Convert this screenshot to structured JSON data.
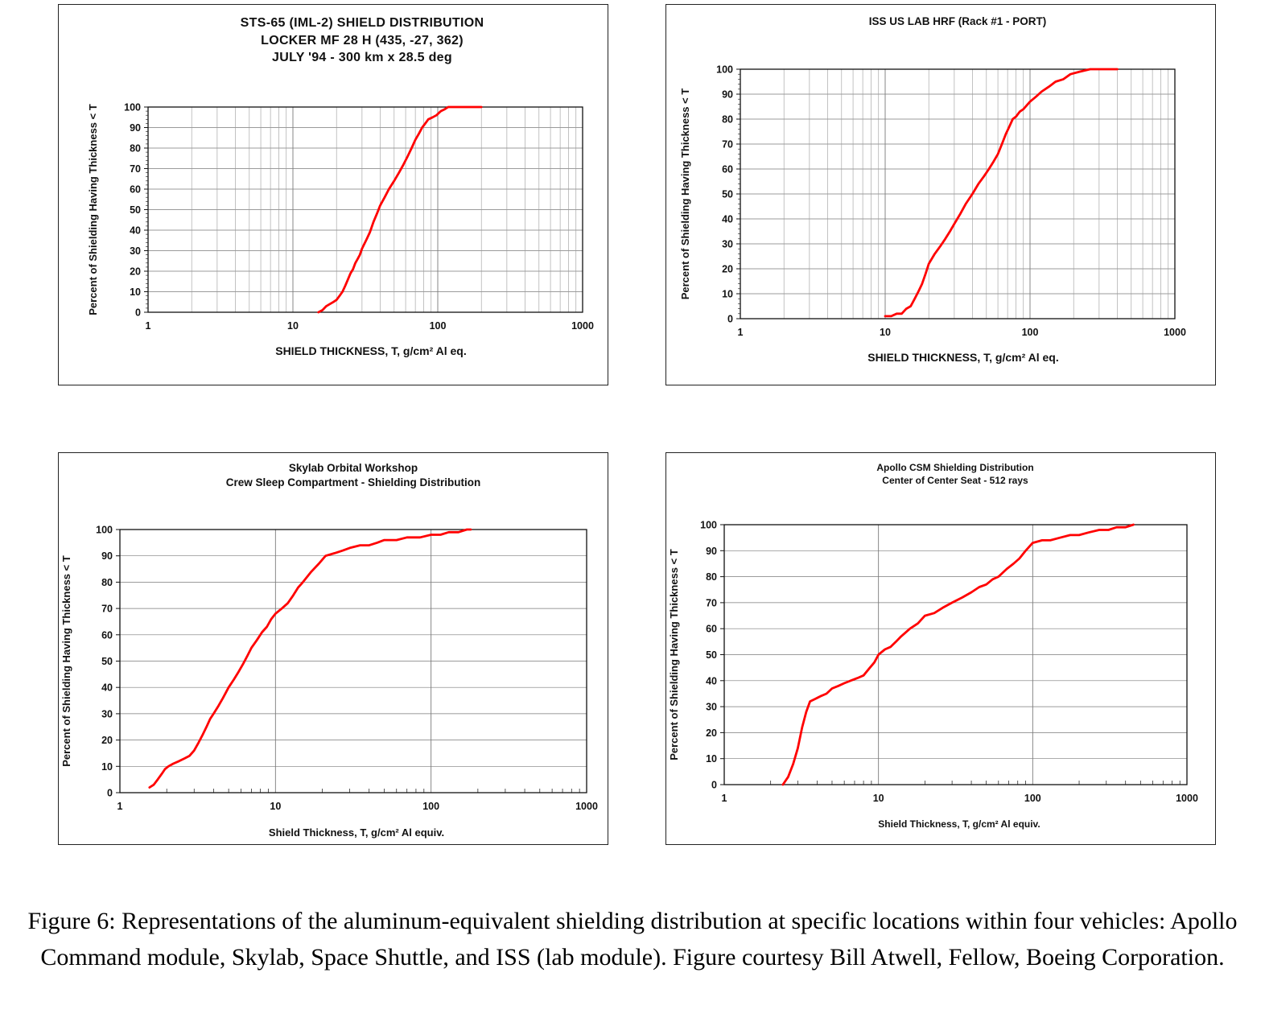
{
  "caption": "Figure 6:  Representations of the aluminum-equivalent shielding distribution at specific locations within four vehicles:  Apollo Command module, Skylab, Space Shuttle, and ISS (lab module). Figure courtesy Bill Atwell, Fellow, Boeing Corporation.",
  "chart_data": [
    {
      "type": "line",
      "title_lines": [
        "STS-65 (IML-2) SHIELD DISTRIBUTION",
        "LOCKER MF 28 H (435, -27, 362)",
        "JULY '94 - 300 km x 28.5 deg"
      ],
      "ylabel": "Percent of Shielding Having Thickness < T",
      "xlabel": "SHIELD THICKNESS, T,  g/cm² Al eq.",
      "x_scale": "log",
      "xlim": [
        1,
        1000
      ],
      "ylim": [
        0,
        100
      ],
      "x_ticks": [
        1,
        10,
        100,
        1000
      ],
      "y_ticks": [
        0,
        10,
        20,
        30,
        40,
        50,
        60,
        70,
        80,
        90,
        100
      ],
      "minor_grid": true,
      "minor_y_ticks": true,
      "line_color": "#ff0000",
      "points": [
        [
          15,
          0
        ],
        [
          16,
          1
        ],
        [
          17,
          3
        ],
        [
          18,
          4
        ],
        [
          19,
          5
        ],
        [
          20,
          6
        ],
        [
          21,
          8
        ],
        [
          22,
          10
        ],
        [
          23,
          13
        ],
        [
          24,
          16
        ],
        [
          25,
          19
        ],
        [
          26,
          21
        ],
        [
          27,
          24
        ],
        [
          28,
          26
        ],
        [
          29,
          28
        ],
        [
          30,
          31
        ],
        [
          32,
          35
        ],
        [
          34,
          39
        ],
        [
          36,
          44
        ],
        [
          38,
          48
        ],
        [
          40,
          52
        ],
        [
          43,
          56
        ],
        [
          46,
          60
        ],
        [
          50,
          64
        ],
        [
          54,
          68
        ],
        [
          58,
          72
        ],
        [
          62,
          76
        ],
        [
          66,
          80
        ],
        [
          70,
          84
        ],
        [
          74,
          87
        ],
        [
          78,
          90
        ],
        [
          82,
          92
        ],
        [
          86,
          94
        ],
        [
          92,
          95
        ],
        [
          98,
          96
        ],
        [
          105,
          98
        ],
        [
          112,
          99
        ],
        [
          118,
          100
        ],
        [
          200,
          100
        ]
      ]
    },
    {
      "type": "line",
      "title_lines": [
        "ISS US LAB HRF (Rack #1 - PORT)"
      ],
      "ylabel": "Percent of Shielding Having Thickness < T",
      "xlabel": "SHIELD THICKNESS, T,  g/cm² Al eq.",
      "x_scale": "log",
      "xlim": [
        1,
        1000
      ],
      "ylim": [
        0,
        100
      ],
      "x_ticks": [
        1,
        10,
        100,
        1000
      ],
      "y_ticks": [
        0,
        10,
        20,
        30,
        40,
        50,
        60,
        70,
        80,
        90,
        100
      ],
      "minor_grid": true,
      "minor_y_ticks": true,
      "line_color": "#ff0000",
      "points": [
        [
          10,
          1
        ],
        [
          11,
          1
        ],
        [
          12,
          2
        ],
        [
          13,
          2
        ],
        [
          14,
          4
        ],
        [
          15,
          5
        ],
        [
          16,
          8
        ],
        [
          17,
          11
        ],
        [
          18,
          14
        ],
        [
          19,
          18
        ],
        [
          20,
          22
        ],
        [
          22,
          26
        ],
        [
          24,
          29
        ],
        [
          26,
          32
        ],
        [
          28,
          35
        ],
        [
          30,
          38
        ],
        [
          33,
          42
        ],
        [
          36,
          46
        ],
        [
          40,
          50
        ],
        [
          44,
          54
        ],
        [
          48,
          57
        ],
        [
          52,
          60
        ],
        [
          56,
          63
        ],
        [
          60,
          66
        ],
        [
          64,
          70
        ],
        [
          68,
          74
        ],
        [
          72,
          77
        ],
        [
          76,
          80
        ],
        [
          80,
          81
        ],
        [
          85,
          83
        ],
        [
          90,
          84
        ],
        [
          100,
          87
        ],
        [
          110,
          89
        ],
        [
          120,
          91
        ],
        [
          135,
          93
        ],
        [
          150,
          95
        ],
        [
          170,
          96
        ],
        [
          190,
          98
        ],
        [
          220,
          99
        ],
        [
          260,
          100
        ],
        [
          400,
          100
        ]
      ]
    },
    {
      "type": "line",
      "title_lines": [
        "Skylab Orbital Workshop",
        "Crew Sleep Compartment - Shielding Distribution"
      ],
      "ylabel": "Percent of Shielding Having Thickness < T",
      "xlabel": "Shield Thickness, T, g/cm² Al equiv.",
      "x_scale": "log",
      "xlim": [
        1,
        1000
      ],
      "ylim": [
        0,
        100
      ],
      "x_ticks": [
        1,
        10,
        100,
        1000
      ],
      "y_ticks": [
        0,
        10,
        20,
        30,
        40,
        50,
        60,
        70,
        80,
        90,
        100
      ],
      "minor_grid": false,
      "minor_y_ticks": false,
      "line_color": "#ff0000",
      "points": [
        [
          1.55,
          2
        ],
        [
          1.65,
          3
        ],
        [
          1.75,
          5
        ],
        [
          1.85,
          7
        ],
        [
          1.95,
          9
        ],
        [
          2.05,
          10
        ],
        [
          2.2,
          11
        ],
        [
          2.4,
          12
        ],
        [
          2.6,
          13
        ],
        [
          2.8,
          14
        ],
        [
          3.0,
          16
        ],
        [
          3.2,
          19
        ],
        [
          3.4,
          22
        ],
        [
          3.6,
          25
        ],
        [
          3.8,
          28
        ],
        [
          4.0,
          30
        ],
        [
          4.3,
          33
        ],
        [
          4.6,
          36
        ],
        [
          5.0,
          40
        ],
        [
          5.4,
          43
        ],
        [
          5.8,
          46
        ],
        [
          6.2,
          49
        ],
        [
          6.6,
          52
        ],
        [
          7.0,
          55
        ],
        [
          7.6,
          58
        ],
        [
          8.2,
          61
        ],
        [
          8.8,
          63
        ],
        [
          9.4,
          66
        ],
        [
          10,
          68
        ],
        [
          11,
          70
        ],
        [
          12,
          72
        ],
        [
          13,
          75
        ],
        [
          14,
          78
        ],
        [
          15,
          80
        ],
        [
          17,
          84
        ],
        [
          19,
          87
        ],
        [
          21,
          90
        ],
        [
          24,
          91
        ],
        [
          27,
          92
        ],
        [
          30,
          93
        ],
        [
          35,
          94
        ],
        [
          40,
          94
        ],
        [
          45,
          95
        ],
        [
          50,
          96
        ],
        [
          60,
          96
        ],
        [
          70,
          97
        ],
        [
          85,
          97
        ],
        [
          100,
          98
        ],
        [
          115,
          98
        ],
        [
          130,
          99
        ],
        [
          150,
          99
        ],
        [
          170,
          100
        ],
        [
          180,
          100
        ]
      ]
    },
    {
      "type": "line",
      "title_lines": [
        "Apollo CSM Shielding Distribution",
        "Center of Center Seat - 512 rays"
      ],
      "ylabel": "Percent of Shielding Having Thickness < T",
      "xlabel": "Shield Thickness, T, g/cm² Al equiv.",
      "x_scale": "log",
      "xlim": [
        1,
        1000
      ],
      "ylim": [
        0,
        100
      ],
      "x_ticks": [
        1,
        10,
        100,
        1000
      ],
      "y_ticks": [
        0,
        10,
        20,
        30,
        40,
        50,
        60,
        70,
        80,
        90,
        100
      ],
      "minor_grid": false,
      "minor_y_ticks": false,
      "line_color": "#ff0000",
      "points": [
        [
          2.4,
          0
        ],
        [
          2.6,
          3
        ],
        [
          2.8,
          8
        ],
        [
          3.0,
          14
        ],
        [
          3.2,
          22
        ],
        [
          3.4,
          28
        ],
        [
          3.6,
          32
        ],
        [
          3.9,
          33
        ],
        [
          4.2,
          34
        ],
        [
          4.6,
          35
        ],
        [
          5.0,
          37
        ],
        [
          5.5,
          38
        ],
        [
          6.0,
          39
        ],
        [
          6.6,
          40
        ],
        [
          7.3,
          41
        ],
        [
          8.0,
          42
        ],
        [
          8.8,
          45
        ],
        [
          9.4,
          47
        ],
        [
          10,
          50
        ],
        [
          11,
          52
        ],
        [
          12,
          53
        ],
        [
          13,
          55
        ],
        [
          14,
          57
        ],
        [
          16,
          60
        ],
        [
          18,
          62
        ],
        [
          20,
          65
        ],
        [
          23,
          66
        ],
        [
          26,
          68
        ],
        [
          30,
          70
        ],
        [
          35,
          72
        ],
        [
          40,
          74
        ],
        [
          45,
          76
        ],
        [
          50,
          77
        ],
        [
          55,
          79
        ],
        [
          60,
          80
        ],
        [
          68,
          83
        ],
        [
          75,
          85
        ],
        [
          82,
          87
        ],
        [
          90,
          90
        ],
        [
          100,
          93
        ],
        [
          115,
          94
        ],
        [
          130,
          94
        ],
        [
          150,
          95
        ],
        [
          175,
          96
        ],
        [
          200,
          96
        ],
        [
          230,
          97
        ],
        [
          270,
          98
        ],
        [
          310,
          98
        ],
        [
          350,
          99
        ],
        [
          400,
          99
        ],
        [
          450,
          100
        ]
      ]
    }
  ]
}
